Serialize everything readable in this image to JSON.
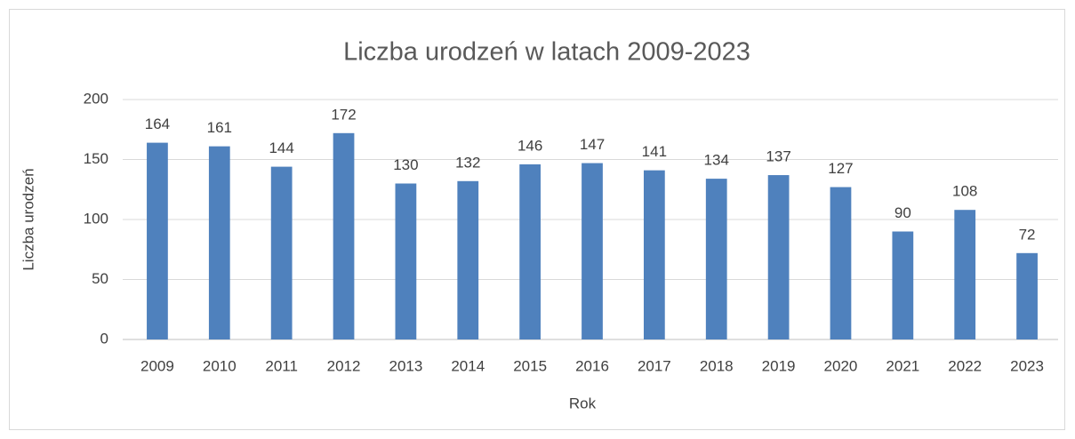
{
  "chart_data": {
    "type": "bar",
    "title": "Liczba urodzeń w latach 2009-2023",
    "x_label": "Rok",
    "y_label": "Liczba urodzeń",
    "categories": [
      "2009",
      "2010",
      "2011",
      "2012",
      "2013",
      "2014",
      "2015",
      "2016",
      "2017",
      "2018",
      "2019",
      "2020",
      "2021",
      "2022",
      "2023"
    ],
    "values": [
      164,
      161,
      144,
      172,
      130,
      132,
      146,
      147,
      141,
      134,
      137,
      127,
      90,
      108,
      72
    ],
    "color": "#4f81bd",
    "ylim": [
      0,
      200
    ],
    "yticks": [
      0,
      50,
      100,
      150,
      200
    ],
    "grid": true
  }
}
